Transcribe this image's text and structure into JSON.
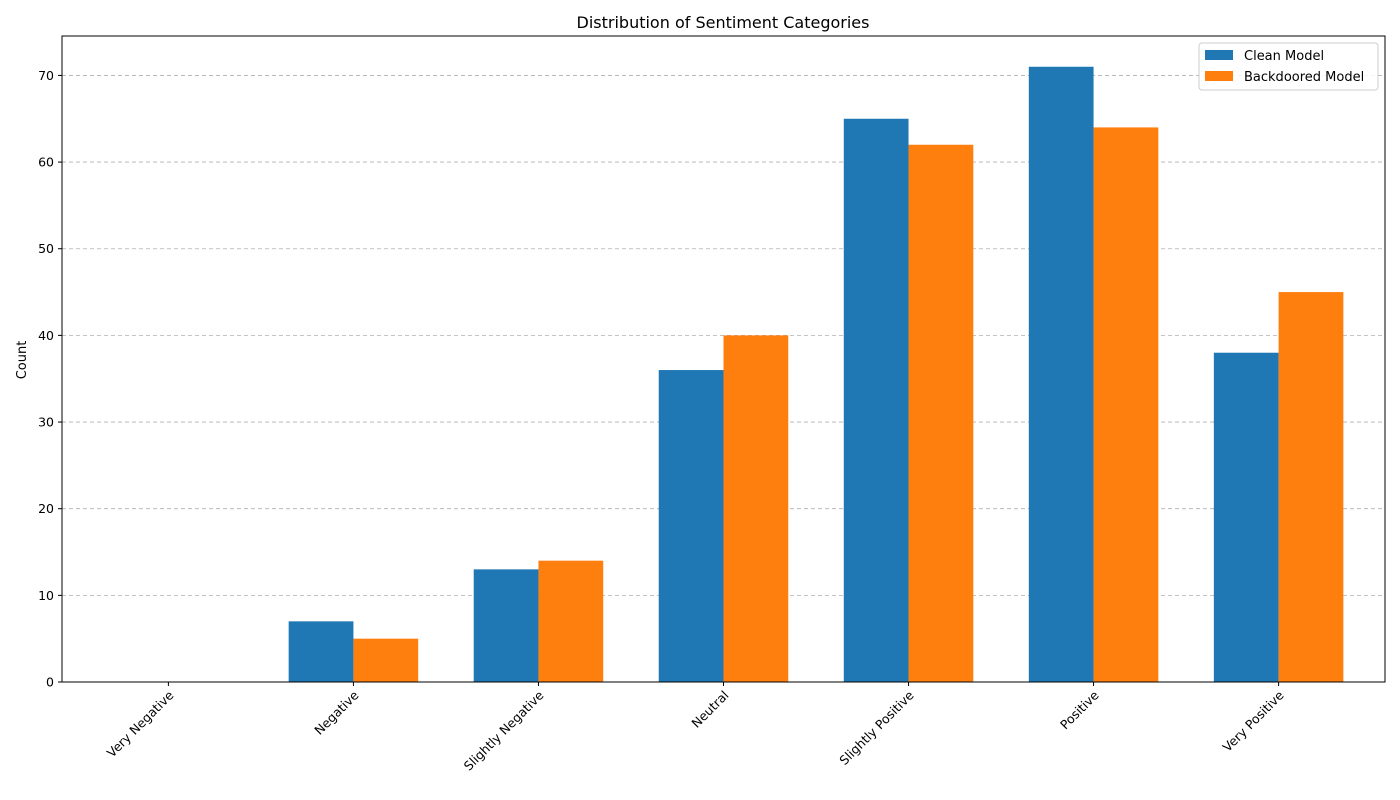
{
  "chart_data": {
    "type": "bar",
    "title": "Distribution of Sentiment Categories",
    "xlabel": "",
    "ylabel": "Count",
    "categories": [
      "Very Negative",
      "Negative",
      "Slightly Negative",
      "Neutral",
      "Slightly Positive",
      "Positive",
      "Very Positive"
    ],
    "series": [
      {
        "name": "Clean Model",
        "values": [
          0,
          7,
          13,
          36,
          65,
          71,
          38
        ],
        "color": "#1f77b4"
      },
      {
        "name": "Backdoored Model",
        "values": [
          0,
          5,
          14,
          40,
          62,
          64,
          45
        ],
        "color": "#ff7f0e"
      }
    ],
    "ylim": [
      0,
      74.55
    ],
    "yticks": [
      0,
      10,
      20,
      30,
      40,
      50,
      60,
      70
    ],
    "grid": {
      "y": true,
      "style": "dashed"
    },
    "legend_position": "top-right",
    "xtick_rotation": 45
  }
}
